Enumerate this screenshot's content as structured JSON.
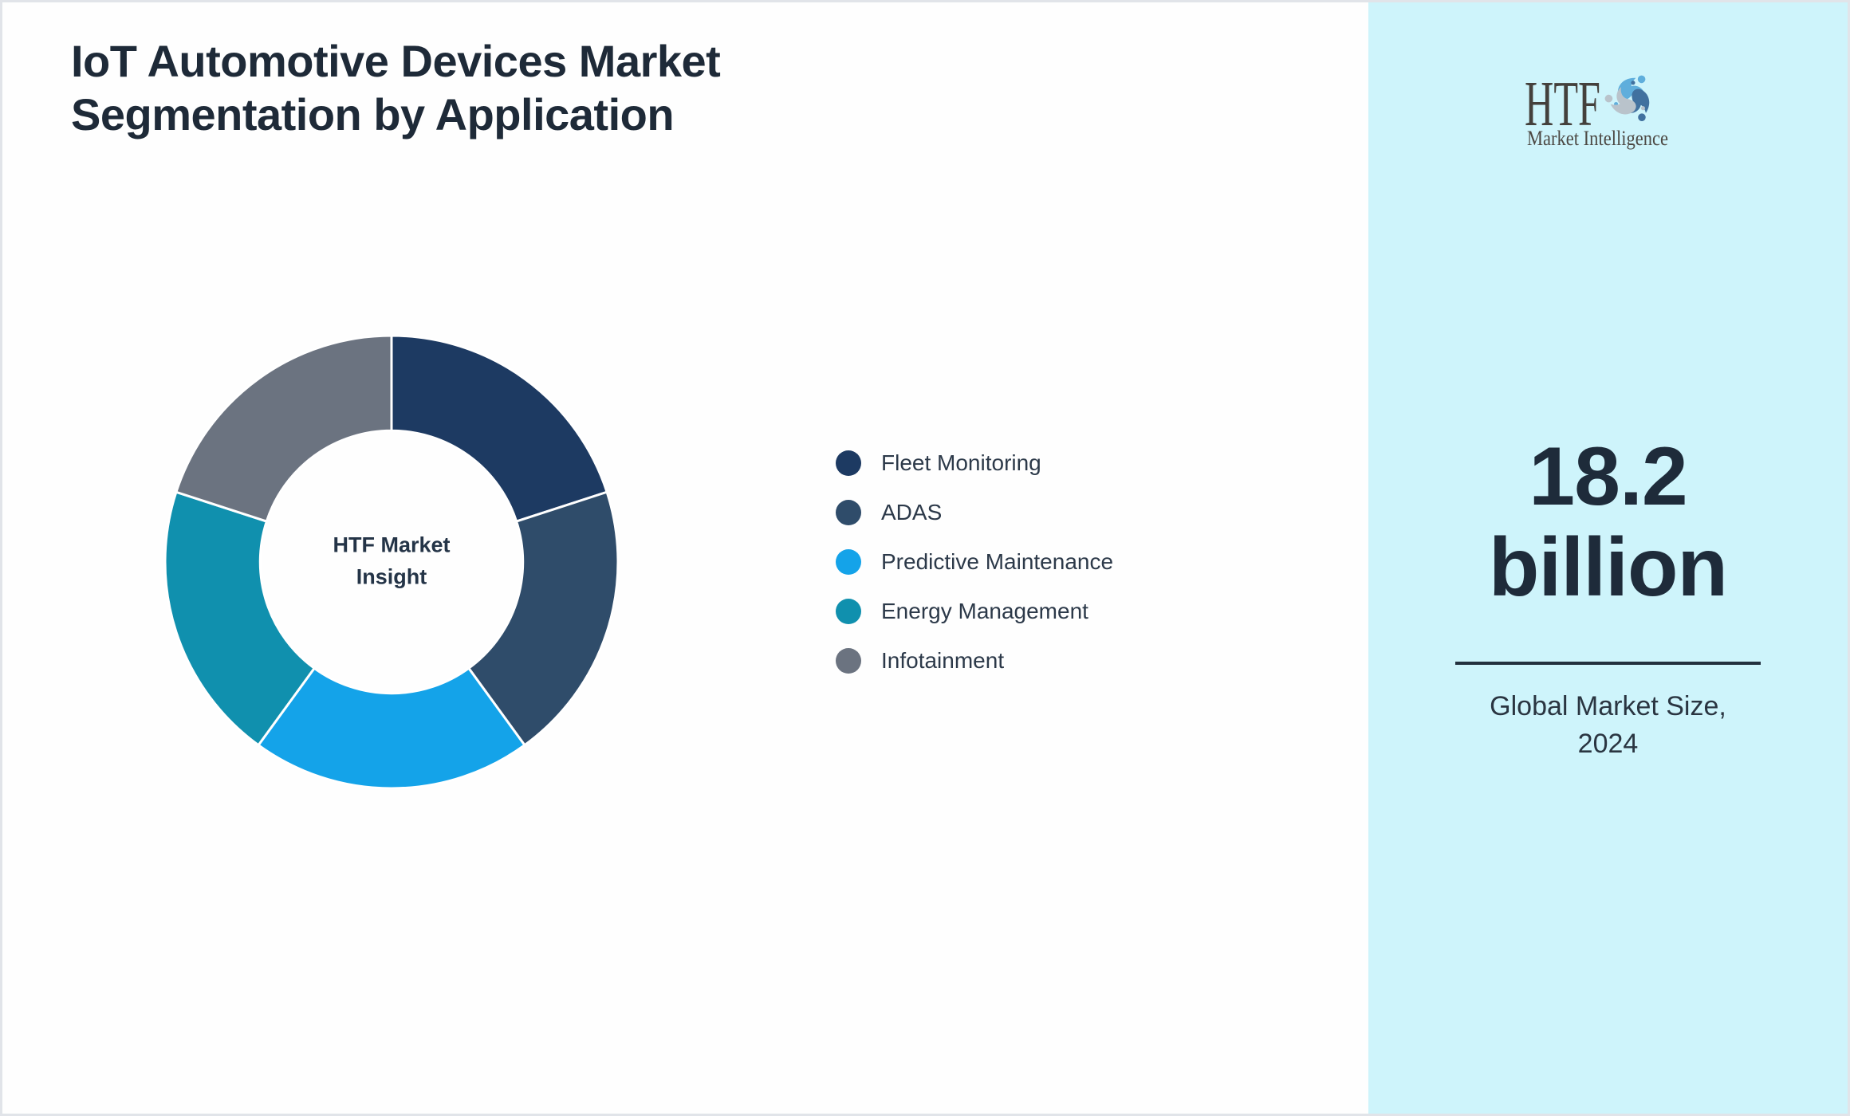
{
  "page": {
    "title_line1": "IoT Automotive Devices Market",
    "title_line2": "Segmentation by Application",
    "title_color": "#1E2A38",
    "background": "#FEFEFE",
    "border_color": "#E1E4E9"
  },
  "chart_data": {
    "type": "pie",
    "subtype": "donut",
    "title": "IoT Automotive Devices Market Segmentation by Application",
    "categories": [
      "Fleet Monitoring",
      "ADAS",
      "Predictive Maintenance",
      "Energy Management",
      "Infotainment"
    ],
    "values": [
      20,
      20,
      20,
      20,
      20
    ],
    "values_unit": "% share (equal visual segments, unlabeled)",
    "colors": [
      "#1D3A62",
      "#2F4C6A",
      "#14A3E9",
      "#1090AE",
      "#6B7380"
    ],
    "start_angle_deg": 0,
    "direction": "clockwise",
    "inner_radius_ratio": 0.58,
    "segment_gap_color": "#FFFFFF",
    "center_label_line1": "HTF Market",
    "center_label_line2": "Insight",
    "legend_position": "right",
    "gridlines": false
  },
  "sidebar": {
    "background": "#CEF4FB",
    "logo": {
      "text": "HTF",
      "subtext": "Market Intelligence",
      "text_color": "#44403C",
      "swirl_colors": [
        "#5FAEDC",
        "#41719F",
        "#B9C3CB"
      ]
    },
    "metric_value_line1": "18.2",
    "metric_value_line2": "billion",
    "metric_caption_line1": "Global Market Size,",
    "metric_caption_line2": "2024",
    "divider_color": "#22303E"
  }
}
